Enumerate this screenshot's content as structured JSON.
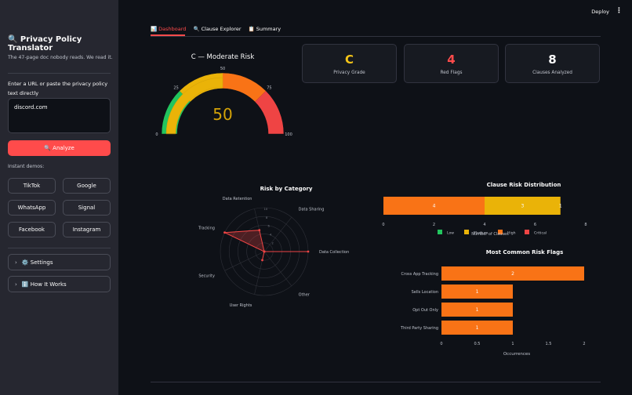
{
  "topbar": {
    "deploy_label": "Deploy",
    "menu_icon": "⋮"
  },
  "sidebar": {
    "title": "🔍 Privacy Policy Translator",
    "subtitle": "The 47-page doc nobody reads. We read it.",
    "input_label": "Enter a URL or paste the privacy policy text directly",
    "input_value": "discord.com",
    "analyze_label": "🔍 Analyze",
    "demos_label": "Instant demos:",
    "demos": [
      "TikTok",
      "Google",
      "WhatsApp",
      "Signal",
      "Facebook",
      "Instagram"
    ],
    "settings_label": "⚙️ Settings",
    "how_label": "ℹ️ How It Works"
  },
  "tabs": [
    {
      "label": "📊 Dashboard"
    },
    {
      "label": "🔍 Clause Explorer"
    },
    {
      "label": "📋 Summary"
    }
  ],
  "metrics": [
    {
      "value": "C",
      "label": "Privacy Grade",
      "color": "#f5c518"
    },
    {
      "value": "4",
      "label": "Red Flags",
      "color": "#ff4b4b"
    },
    {
      "value": "8",
      "label": "Clauses Analyzed",
      "color": "#fafafa"
    }
  ],
  "colors": {
    "low": "#22c55e",
    "medium": "#eab308",
    "high": "#f97316",
    "critical": "#ef4444"
  },
  "chart_data": [
    {
      "type": "gauge",
      "title": "C — Moderate Risk",
      "value": 50,
      "range": [
        0,
        100
      ],
      "ticks": [
        "0",
        "25",
        "50",
        "75",
        "100"
      ],
      "bands": [
        {
          "from": 0,
          "to": 25,
          "color": "#22c55e"
        },
        {
          "from": 25,
          "to": 50,
          "color": "#eab308"
        },
        {
          "from": 50,
          "to": 75,
          "color": "#f97316"
        },
        {
          "from": 75,
          "to": 100,
          "color": "#ef4444"
        }
      ]
    },
    {
      "type": "radar",
      "title": "Risk by Category",
      "categories": [
        "Data Collection",
        "Data Sharing",
        "Data Retention",
        "Tracking",
        "Security",
        "User Rights",
        "Other"
      ],
      "values": [
        10,
        0,
        5,
        10,
        0,
        2,
        0
      ],
      "rticks": [
        2,
        4,
        6,
        8,
        10
      ],
      "rmax": 10
    },
    {
      "type": "bar",
      "orientation": "horizontal-stacked",
      "title": "Clause Risk Distribution",
      "xlabel": "Number of Clauses",
      "xlim": [
        0,
        8
      ],
      "xticks": [
        "0",
        "2",
        "4",
        "6",
        "8"
      ],
      "series": [
        {
          "name": "Low",
          "value": 0
        },
        {
          "name": "Medium",
          "value": 3
        },
        {
          "name": "High",
          "value": 4
        },
        {
          "name": "Critical",
          "value": 1
        }
      ],
      "stack_order": [
        "High",
        "Medium",
        "Low"
      ],
      "data_labels": [
        "4",
        "3",
        "1"
      ]
    },
    {
      "type": "bar",
      "orientation": "horizontal",
      "title": "Most Common Risk Flags",
      "xlabel": "Occurrences",
      "xlim": [
        0,
        2
      ],
      "xticks": [
        "0",
        "0.5",
        "1",
        "1.5",
        "2"
      ],
      "categories": [
        "Cross App Tracking",
        "Sells Location",
        "Opt Out Only",
        "Third Party Sharing"
      ],
      "values": [
        2,
        1,
        1,
        1
      ]
    }
  ]
}
